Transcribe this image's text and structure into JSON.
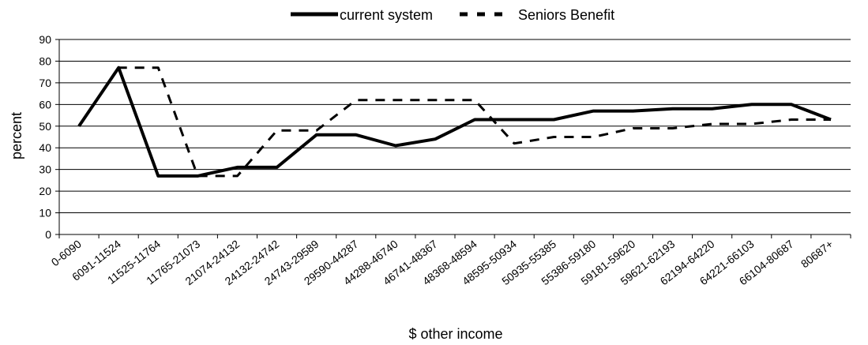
{
  "chart_data": {
    "type": "line",
    "xlabel": "$ other income",
    "ylabel": "percent",
    "ylim": [
      0,
      90
    ],
    "yticks": [
      0,
      10,
      20,
      30,
      40,
      50,
      60,
      70,
      80,
      90
    ],
    "grid": "horizontal",
    "legend_position": "top",
    "categories": [
      "0-6090",
      "6091-11524",
      "11525-11764",
      "11765-21073",
      "21074-24132",
      "24132-24742",
      "24743-29589",
      "29590-44287",
      "44288-46740",
      "46741-48367",
      "48368-48594",
      "48595-50934",
      "50935-55385",
      "55386-59180",
      "59181-59620",
      "59621-62193",
      "62194-64220",
      "64221-66103",
      "66104-80687",
      "80687+"
    ],
    "series": [
      {
        "name": "current system",
        "style": "solid",
        "color": "#000000",
        "values": [
          50,
          77,
          27,
          27,
          31,
          31,
          46,
          46,
          41,
          44,
          53,
          53,
          53,
          57,
          57,
          58,
          58,
          60,
          60,
          53
        ]
      },
      {
        "name": "Seniors Benefit",
        "style": "dashed",
        "color": "#000000",
        "values": [
          50,
          77,
          77,
          27,
          27,
          48,
          48,
          62,
          62,
          62,
          62,
          42,
          45,
          45,
          49,
          49,
          51,
          51,
          53,
          53
        ]
      }
    ]
  }
}
